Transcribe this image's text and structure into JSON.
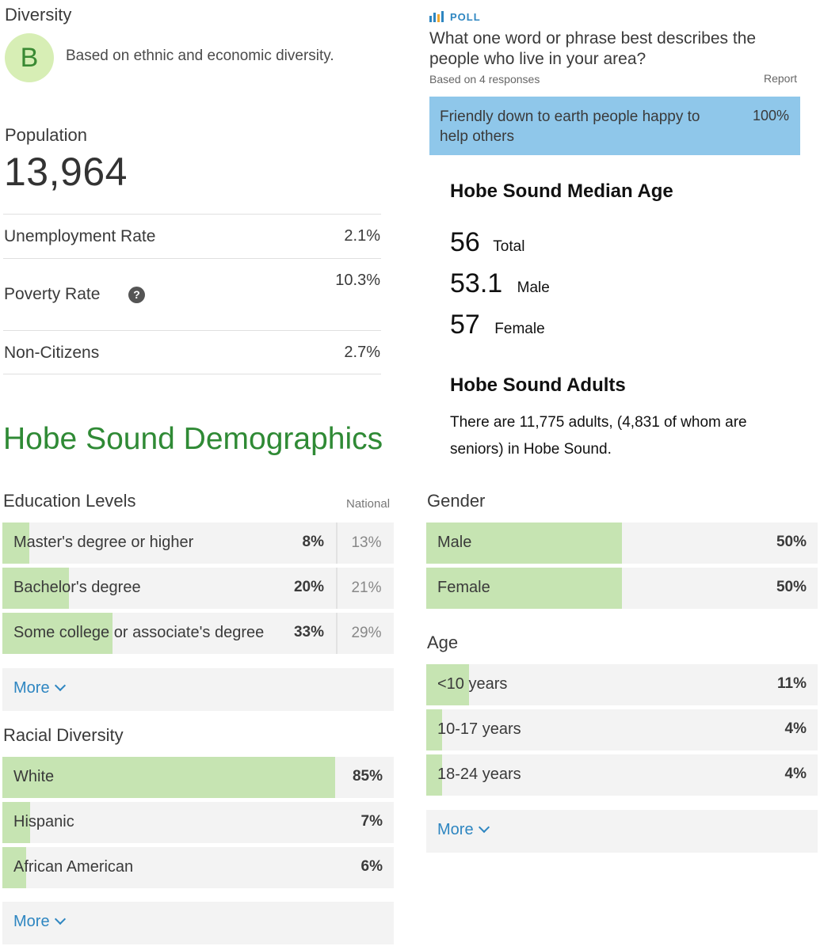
{
  "diversity": {
    "label": "Diversity",
    "grade": "B",
    "description": "Based on ethnic and economic diversity."
  },
  "population": {
    "label": "Population",
    "value": "13,964"
  },
  "stats": [
    {
      "label": "Unemployment Rate",
      "value": "2.1%"
    },
    {
      "label": "Poverty Rate",
      "value": "10.3%",
      "help_icon": "?"
    },
    {
      "label": "Non-Citizens",
      "value": "2.7%"
    }
  ],
  "demographics_title": "Hobe Sound Demographics",
  "poll": {
    "tag": "POLL",
    "question": "What one word or phrase best describes the people who live in your area?",
    "responses": "Based on 4 responses",
    "report_label": "Report",
    "answer": {
      "text": "Friendly down to earth people happy to help others",
      "pct": "100%",
      "fraction": 1.0
    },
    "answer_color": "#8fc7ea"
  },
  "median_age": {
    "heading": "Hobe Sound Median Age",
    "rows": [
      {
        "value": "56",
        "label": "Total"
      },
      {
        "value": "53.1",
        "label": "Male"
      },
      {
        "value": "57",
        "label": "Female"
      }
    ]
  },
  "adults": {
    "heading": "Hobe Sound Adults",
    "text": "There are 11,775 adults, (4,831 of whom are seniors) in Hobe Sound."
  },
  "education": {
    "heading": "Education Levels",
    "national_label": "National",
    "rows": [
      {
        "label": "Master's degree or higher",
        "pct": "8%",
        "national": "13%",
        "fraction": 0.08
      },
      {
        "label": "Bachelor's degree",
        "pct": "20%",
        "national": "21%",
        "fraction": 0.2
      },
      {
        "label": "Some college or associate's degree",
        "pct": "33%",
        "national": "29%",
        "fraction": 0.33
      }
    ],
    "more_label": "More"
  },
  "racial": {
    "heading": "Racial Diversity",
    "rows": [
      {
        "label": "White",
        "pct": "85%",
        "fraction": 0.85
      },
      {
        "label": "Hispanic",
        "pct": "7%",
        "fraction": 0.07
      },
      {
        "label": "African American",
        "pct": "6%",
        "fraction": 0.06
      }
    ],
    "more_label": "More"
  },
  "gender": {
    "heading": "Gender",
    "rows": [
      {
        "label": "Male",
        "pct": "50%",
        "fraction": 0.5
      },
      {
        "label": "Female",
        "pct": "50%",
        "fraction": 0.5
      }
    ]
  },
  "age": {
    "heading": "Age",
    "rows": [
      {
        "label": "<10 years",
        "pct": "11%",
        "fraction": 0.11
      },
      {
        "label": "10-17 years",
        "pct": "4%",
        "fraction": 0.04
      },
      {
        "label": "18-24 years",
        "pct": "4%",
        "fraction": 0.04
      }
    ],
    "more_label": "More"
  },
  "colors": {
    "accent_green": "#2f8a35",
    "bar_fill": "#c6e4b2",
    "link_blue": "#2e86c1",
    "grade_bg": "#d7eeb5"
  }
}
